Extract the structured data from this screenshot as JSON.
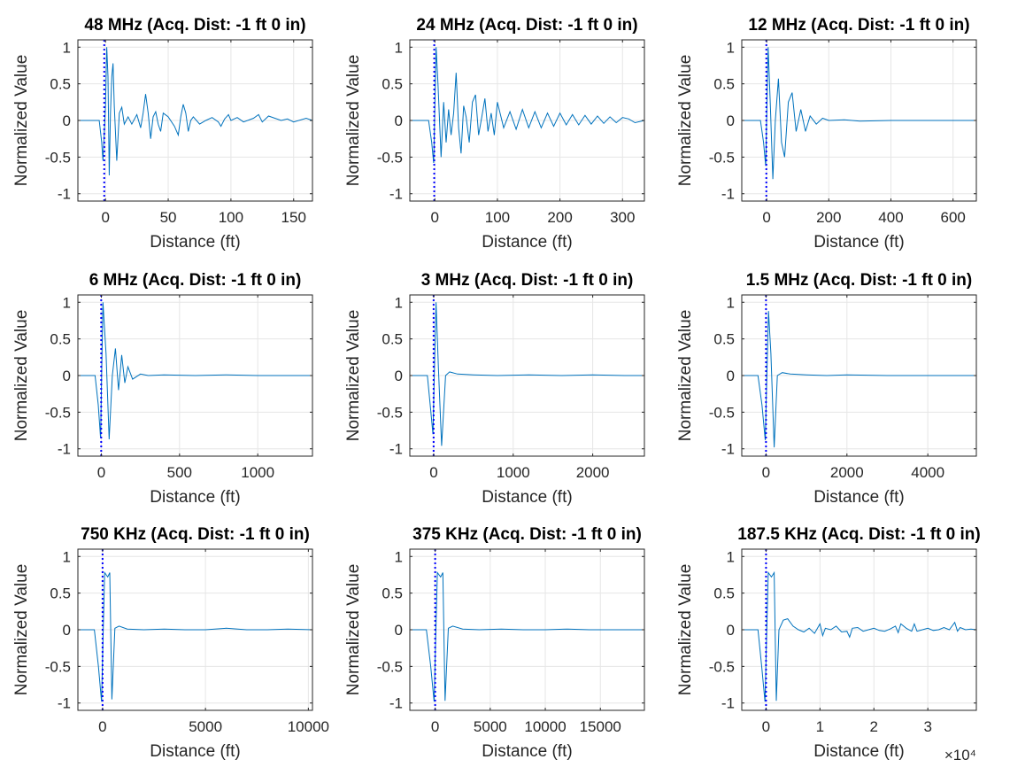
{
  "colors": {
    "signal": "#0072BD",
    "marker": "#0000FF",
    "grid": "#E6E6E6",
    "axes": "#262626"
  },
  "chart_data": [
    {
      "type": "line",
      "title": "48 MHz (Acq. Dist: -1 ft 0 in)",
      "xlabel": "Distance (ft)",
      "ylabel": "Normalized Value",
      "xlim": [
        -22,
        165
      ],
      "ylim": [
        -1.1,
        1.1
      ],
      "xticks": [
        0,
        50,
        100,
        150
      ],
      "xtick_labels": [
        "0",
        "50",
        "100",
        "150"
      ],
      "yticks": [
        -1,
        -0.5,
        0,
        0.5,
        1
      ],
      "ytick_labels": [
        "-1",
        "-0.5",
        "0",
        "0.5",
        "1"
      ],
      "grid": true,
      "marker_x": -1,
      "series": [
        {
          "x": [
            -22,
            -5,
            -3,
            -2,
            0,
            1,
            2,
            3,
            4,
            5,
            6,
            7,
            9,
            11,
            13,
            15,
            18,
            21,
            25,
            28,
            30,
            32,
            34,
            36,
            38,
            40,
            42,
            44,
            46,
            50,
            55,
            58,
            60,
            62,
            64,
            66,
            68,
            70,
            75,
            80,
            85,
            90,
            92,
            95,
            98,
            100,
            105,
            110,
            118,
            122,
            125,
            130,
            140,
            145,
            150,
            160,
            165
          ],
          "y": [
            0,
            0,
            -0.3,
            -0.55,
            0.2,
            1.0,
            0.6,
            -0.75,
            0.1,
            0.6,
            0.78,
            0.2,
            -0.55,
            0.1,
            0.18,
            -0.05,
            0.05,
            -0.05,
            0.08,
            -0.1,
            0.1,
            0.36,
            0.1,
            -0.25,
            0.05,
            0.12,
            -0.05,
            -0.15,
            0.1,
            0.05,
            -0.08,
            -0.2,
            0.05,
            0.22,
            0.1,
            -0.15,
            0.0,
            0.05,
            -0.05,
            0.0,
            0.04,
            -0.02,
            -0.08,
            0.02,
            0.08,
            0.0,
            0.04,
            -0.02,
            0.03,
            0.08,
            -0.02,
            0.06,
            0.0,
            0.02,
            -0.02,
            0.03,
            0.0
          ]
        }
      ]
    },
    {
      "type": "line",
      "title": "24 MHz (Acq. Dist: -1 ft 0 in)",
      "xlabel": "Distance (ft)",
      "ylabel": "Normalized Value",
      "xlim": [
        -40,
        335
      ],
      "ylim": [
        -1.1,
        1.1
      ],
      "xticks": [
        0,
        100,
        200,
        300
      ],
      "xtick_labels": [
        "0",
        "100",
        "200",
        "300"
      ],
      "yticks": [
        -1,
        -0.5,
        0,
        0.5,
        1
      ],
      "ytick_labels": [
        "-1",
        "-0.5",
        "0",
        "0.5",
        "1"
      ],
      "grid": true,
      "marker_x": -1,
      "series": [
        {
          "x": [
            -40,
            -10,
            -5,
            -2,
            2,
            5,
            10,
            14,
            18,
            22,
            26,
            30,
            34,
            38,
            42,
            46,
            50,
            55,
            60,
            65,
            70,
            75,
            80,
            85,
            90,
            95,
            100,
            110,
            120,
            130,
            140,
            150,
            160,
            170,
            180,
            190,
            200,
            210,
            220,
            230,
            240,
            250,
            260,
            270,
            280,
            290,
            300,
            310,
            320,
            335
          ],
          "y": [
            0,
            0,
            -0.3,
            -0.58,
            1.0,
            0.5,
            -0.5,
            0.25,
            -0.3,
            0.15,
            -0.2,
            0.1,
            0.65,
            -0.1,
            -0.45,
            0.2,
            0.05,
            -0.3,
            0.25,
            0.35,
            -0.2,
            0.05,
            0.3,
            -0.15,
            0.1,
            -0.2,
            0.25,
            -0.1,
            0.12,
            -0.12,
            0.15,
            -0.1,
            0.12,
            -0.1,
            0.1,
            -0.08,
            0.1,
            -0.06,
            0.08,
            -0.06,
            0.07,
            -0.05,
            0.06,
            -0.04,
            0.05,
            -0.03,
            0.04,
            0.02,
            -0.03,
            0.0
          ]
        }
      ]
    },
    {
      "type": "line",
      "title": "12 MHz (Acq. Dist: -1 ft 0 in)",
      "xlabel": "Distance (ft)",
      "ylabel": "Normalized Value",
      "xlim": [
        -80,
        675
      ],
      "ylim": [
        -1.1,
        1.1
      ],
      "xticks": [
        0,
        200,
        400,
        600
      ],
      "xtick_labels": [
        "0",
        "200",
        "400",
        "600"
      ],
      "yticks": [
        -1,
        -0.5,
        0,
        0.5,
        1
      ],
      "ytick_labels": [
        "-1",
        "-0.5",
        "0",
        "0.5",
        "1"
      ],
      "grid": true,
      "marker_x": -1,
      "series": [
        {
          "x": [
            -80,
            -20,
            -10,
            -3,
            5,
            12,
            20,
            28,
            38,
            48,
            58,
            70,
            82,
            95,
            110,
            125,
            140,
            160,
            180,
            200,
            250,
            300,
            400,
            500,
            600,
            675
          ],
          "y": [
            0,
            0,
            -0.3,
            -0.62,
            1.0,
            0.2,
            -0.8,
            0.0,
            0.57,
            -0.3,
            -0.5,
            0.25,
            0.38,
            -0.15,
            0.15,
            -0.15,
            0.06,
            -0.05,
            0.03,
            0.0,
            0.01,
            -0.01,
            0.0,
            0.0,
            0.0,
            0.0
          ]
        }
      ]
    },
    {
      "type": "line",
      "title": "6 MHz (Acq. Dist: -1 ft 0 in)",
      "xlabel": "Distance (ft)",
      "ylabel": "Normalized Value",
      "xlim": [
        -150,
        1350
      ],
      "ylim": [
        -1.1,
        1.1
      ],
      "xticks": [
        0,
        500,
        1000
      ],
      "xtick_labels": [
        "0",
        "500",
        "1000"
      ],
      "yticks": [
        -1,
        -0.5,
        0,
        0.5,
        1
      ],
      "ytick_labels": [
        "-1",
        "-0.5",
        "0",
        "0.5",
        "1"
      ],
      "grid": true,
      "marker_x": -1,
      "series": [
        {
          "x": [
            -150,
            -40,
            -20,
            -5,
            10,
            30,
            50,
            70,
            90,
            110,
            130,
            150,
            170,
            200,
            250,
            300,
            400,
            600,
            800,
            1000,
            1200,
            1350
          ],
          "y": [
            0,
            0,
            -0.4,
            -0.85,
            1.0,
            0.3,
            -0.87,
            0.0,
            0.37,
            -0.2,
            0.28,
            -0.1,
            0.12,
            -0.05,
            0.02,
            0.0,
            0.01,
            0.0,
            0.01,
            0.0,
            0.0,
            0.0
          ]
        }
      ]
    },
    {
      "type": "line",
      "title": "3 MHz (Acq. Dist: -1 ft 0 in)",
      "xlabel": "Distance (ft)",
      "ylabel": "Normalized Value",
      "xlim": [
        -300,
        2650
      ],
      "ylim": [
        -1.1,
        1.1
      ],
      "xticks": [
        0,
        1000,
        2000
      ],
      "xtick_labels": [
        "0",
        "1000",
        "2000"
      ],
      "yticks": [
        -1,
        -0.5,
        0,
        0.5,
        1
      ],
      "ytick_labels": [
        "-1",
        "-0.5",
        "0",
        "0.5",
        "1"
      ],
      "grid": true,
      "marker_x": -1,
      "series": [
        {
          "x": [
            -300,
            -80,
            -40,
            -10,
            30,
            60,
            100,
            150,
            200,
            300,
            500,
            800,
            1200,
            1600,
            2000,
            2400,
            2650
          ],
          "y": [
            0,
            0,
            -0.45,
            -0.8,
            1.0,
            0.1,
            -0.96,
            0.0,
            0.05,
            0.02,
            0.01,
            0.0,
            0.01,
            0.0,
            0.01,
            0.0,
            0.0
          ]
        }
      ]
    },
    {
      "type": "line",
      "title": "1.5 MHz (Acq. Dist: -1 ft 0 in)",
      "xlabel": "Distance (ft)",
      "ylabel": "Normalized Value",
      "xlim": [
        -600,
        5200
      ],
      "ylim": [
        -1.1,
        1.1
      ],
      "xticks": [
        0,
        2000,
        4000
      ],
      "xtick_labels": [
        "0",
        "2000",
        "4000"
      ],
      "yticks": [
        -1,
        -0.5,
        0,
        0.5,
        1
      ],
      "ytick_labels": [
        "-1",
        "-0.5",
        "0",
        "0.5",
        "1"
      ],
      "grid": true,
      "marker_x": -1,
      "series": [
        {
          "x": [
            -600,
            -200,
            -100,
            -20,
            60,
            120,
            200,
            280,
            400,
            600,
            1000,
            1500,
            2000,
            3000,
            4000,
            5200
          ],
          "y": [
            0,
            0,
            -0.4,
            -0.88,
            0.88,
            0.3,
            -0.98,
            0.0,
            0.04,
            0.02,
            0.01,
            0.0,
            0.01,
            0.0,
            0.0,
            0.0
          ]
        }
      ]
    },
    {
      "type": "line",
      "title": "750 KHz (Acq. Dist: -1 ft 0 in)",
      "xlabel": "Distance (ft)",
      "ylabel": "Normalized Value",
      "xlim": [
        -1200,
        10200
      ],
      "ylim": [
        -1.1,
        1.1
      ],
      "xticks": [
        0,
        5000,
        10000
      ],
      "xtick_labels": [
        "0",
        "5000",
        "10000"
      ],
      "yticks": [
        -1,
        -0.5,
        0,
        0.5,
        1
      ],
      "ytick_labels": [
        "-1",
        "-0.5",
        "0",
        "0.5",
        "1"
      ],
      "grid": true,
      "marker_x": -1,
      "series": [
        {
          "x": [
            -1200,
            -400,
            -200,
            -50,
            100,
            250,
            350,
            450,
            600,
            800,
            1200,
            2000,
            3000,
            4000,
            5000,
            6000,
            7000,
            8000,
            9000,
            10200
          ],
          "y": [
            0,
            0,
            -0.5,
            -0.98,
            0.78,
            0.72,
            0.78,
            -0.95,
            0.02,
            0.05,
            0.01,
            0.0,
            0.01,
            0.0,
            0.0,
            0.02,
            0.0,
            0.0,
            0.01,
            0.0
          ]
        }
      ]
    },
    {
      "type": "line",
      "title": "375 KHz (Acq. Dist: -1 ft 0 in)",
      "xlabel": "Distance (ft)",
      "ylabel": "Normalized Value",
      "xlim": [
        -2300,
        19000
      ],
      "ylim": [
        -1.1,
        1.1
      ],
      "xticks": [
        0,
        5000,
        10000,
        15000
      ],
      "xtick_labels": [
        "0",
        "5000",
        "10000",
        "15000"
      ],
      "yticks": [
        -1,
        -0.5,
        0,
        0.5,
        1
      ],
      "ytick_labels": [
        "-1",
        "-0.5",
        "0",
        "0.5",
        "1"
      ],
      "grid": true,
      "marker_x": -1,
      "series": [
        {
          "x": [
            -2300,
            -800,
            -400,
            -100,
            200,
            500,
            700,
            900,
            1200,
            1600,
            2500,
            4000,
            6000,
            8000,
            10000,
            12000,
            14000,
            16000,
            19000
          ],
          "y": [
            0,
            0,
            -0.5,
            -0.98,
            0.78,
            0.72,
            0.78,
            -0.97,
            0.02,
            0.05,
            0.01,
            0.0,
            0.01,
            0.0,
            0.0,
            0.01,
            0.0,
            0.0,
            0.0
          ]
        }
      ]
    },
    {
      "type": "line",
      "title": "187.5 KHz (Acq. Dist: -1 ft 0 in)",
      "xlabel": "Distance (ft)",
      "ylabel": "Normalized Value",
      "xlim": [
        -4500,
        39000
      ],
      "ylim": [
        -1.1,
        1.1
      ],
      "xticks": [
        0,
        10000,
        20000,
        30000
      ],
      "xtick_labels": [
        "0",
        "1",
        "2",
        "3"
      ],
      "x_exponent": "×10⁴",
      "yticks": [
        -1,
        -0.5,
        0,
        0.5,
        1
      ],
      "ytick_labels": [
        "-1",
        "-0.5",
        "0",
        "0.5",
        "1"
      ],
      "grid": true,
      "marker_x": -1,
      "series": [
        {
          "x": [
            -4500,
            -1500,
            -800,
            -200,
            400,
            1000,
            1500,
            1900,
            2400,
            3200,
            4000,
            5000,
            6000,
            7000,
            8000,
            9000,
            10000,
            10500,
            11000,
            12000,
            13000,
            14000,
            15000,
            15500,
            16000,
            17000,
            18000,
            19000,
            20000,
            21000,
            22000,
            23000,
            24000,
            24500,
            25000,
            26000,
            27000,
            27500,
            28000,
            29000,
            30000,
            31000,
            32000,
            33000,
            34000,
            35000,
            35500,
            36000,
            37000,
            38000,
            39000
          ],
          "y": [
            0,
            0,
            -0.5,
            -0.98,
            0.78,
            0.72,
            0.78,
            -0.97,
            0.0,
            0.13,
            0.15,
            0.05,
            0.0,
            -0.03,
            0.02,
            -0.05,
            0.08,
            -0.08,
            0.02,
            0.0,
            0.05,
            -0.03,
            -0.02,
            -0.1,
            0.02,
            0.03,
            -0.02,
            0.0,
            0.02,
            -0.01,
            -0.02,
            0.01,
            0.05,
            -0.04,
            0.08,
            0.02,
            -0.02,
            0.08,
            -0.02,
            0.0,
            0.02,
            -0.01,
            0.0,
            0.03,
            0.0,
            0.1,
            -0.02,
            0.03,
            0.0,
            0.01,
            0.0
          ]
        }
      ]
    }
  ]
}
